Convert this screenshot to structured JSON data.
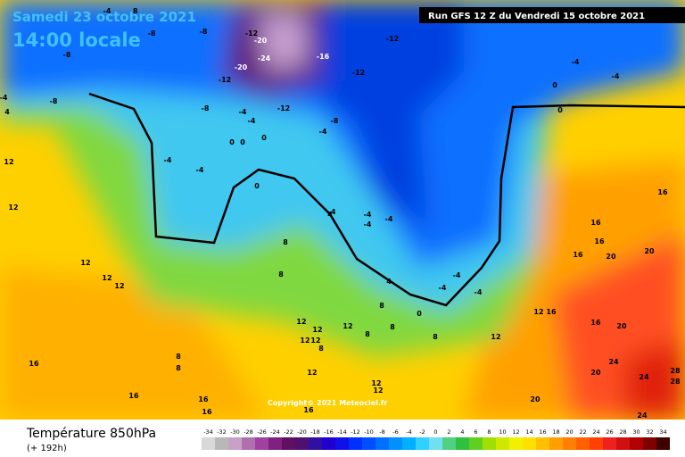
{
  "header": {
    "date": "Samedi 23 octobre 2021",
    "time": "14:00 locale",
    "run": "Run GFS 12 Z du Vendredi 15 octobre 2021"
  },
  "map": {
    "copyright": "Copyright© 2021 Meteociel.fr",
    "labels": [
      -8,
      -8,
      -8,
      -4,
      -8,
      -12,
      -20,
      -24,
      -12,
      -20,
      -16,
      -12,
      -12,
      -8,
      -4,
      -12,
      -8,
      -4,
      -4,
      0,
      0,
      0,
      -4,
      -4,
      0,
      -4,
      -4,
      -4,
      -4,
      0,
      0,
      -4,
      -4,
      4,
      8,
      8,
      12,
      12,
      12,
      16,
      20,
      20,
      16,
      16,
      16,
      12,
      16,
      16,
      20,
      24,
      24,
      28,
      28,
      20,
      20,
      24,
      16,
      16,
      16,
      16,
      16,
      12,
      12,
      12,
      12,
      8,
      12,
      8,
      8,
      8,
      8,
      12,
      12,
      12,
      12,
      8,
      8,
      4,
      0,
      -4,
      -4,
      -4,
      12,
      12,
      4,
      -4,
      -8
    ]
  },
  "footer": {
    "title": "Température 850hPa",
    "lead": "(+ 192h)"
  },
  "scale": {
    "ticks": [
      -34,
      -32,
      -30,
      -28,
      -26,
      -24,
      -22,
      -20,
      -18,
      -16,
      -14,
      -12,
      -10,
      -8,
      -6,
      -4,
      -2,
      0,
      2,
      4,
      6,
      8,
      10,
      12,
      14,
      16,
      18,
      20,
      22,
      24,
      26,
      28,
      30,
      32,
      34
    ],
    "colors": [
      "#d8d8d8",
      "#b8b8b8",
      "#c8a0c8",
      "#b070b0",
      "#a040a0",
      "#802080",
      "#601060",
      "#501070",
      "#3010a0",
      "#2000d0",
      "#1010e8",
      "#0030ff",
      "#0050ff",
      "#0070ff",
      "#0090ff",
      "#00b0ff",
      "#30d0ff",
      "#70e0f0",
      "#50d080",
      "#30c040",
      "#60d020",
      "#a0e000",
      "#d0e800",
      "#f0f000",
      "#ffe000",
      "#ffc000",
      "#ffa000",
      "#ff8000",
      "#ff6000",
      "#ff4000",
      "#f02020",
      "#d01010",
      "#b00000",
      "#800000",
      "#400000"
    ]
  }
}
